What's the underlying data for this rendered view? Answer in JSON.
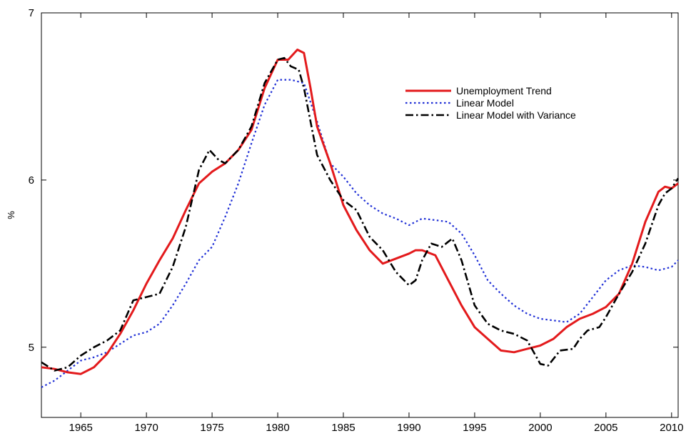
{
  "chart_data": {
    "type": "line",
    "title": "",
    "xlabel": "",
    "ylabel": "%",
    "xlim": [
      1962,
      2010.5
    ],
    "ylim": [
      4.58,
      7.0
    ],
    "xticks": [
      1965,
      1970,
      1975,
      1980,
      1985,
      1990,
      1995,
      2000,
      2005,
      2010
    ],
    "yticks": [
      5,
      6,
      7
    ],
    "grid": false,
    "legend_position": "top-right",
    "series": [
      {
        "name": "Unemployment Trend",
        "color": "#e31a1c",
        "style": "solid",
        "x": [
          1962,
          1963,
          1964,
          1965,
          1966,
          1967,
          1968,
          1969,
          1970,
          1971,
          1972,
          1973,
          1974,
          1975,
          1976,
          1977,
          1978,
          1979,
          1980,
          1980.8,
          1981.5,
          1982,
          1982.5,
          1983,
          1984,
          1985,
          1986,
          1987,
          1988,
          1989,
          1990,
          1990.5,
          1991,
          1992,
          1993,
          1994,
          1995,
          1996,
          1997,
          1998,
          1999,
          2000,
          2001,
          2002,
          2003,
          2004,
          2005,
          2006,
          2007,
          2008,
          2009,
          2009.5,
          2010,
          2010.5
        ],
        "y": [
          4.88,
          4.87,
          4.85,
          4.84,
          4.88,
          4.96,
          5.08,
          5.22,
          5.38,
          5.52,
          5.65,
          5.82,
          5.98,
          6.05,
          6.1,
          6.18,
          6.3,
          6.55,
          6.72,
          6.72,
          6.78,
          6.76,
          6.55,
          6.32,
          6.1,
          5.85,
          5.7,
          5.58,
          5.5,
          5.53,
          5.56,
          5.58,
          5.58,
          5.55,
          5.4,
          5.25,
          5.12,
          5.05,
          4.98,
          4.97,
          4.99,
          5.01,
          5.05,
          5.12,
          5.17,
          5.2,
          5.24,
          5.32,
          5.5,
          5.75,
          5.93,
          5.96,
          5.95,
          5.98
        ]
      },
      {
        "name": "Linear Model",
        "color": "#1f2fd6",
        "style": "dotted",
        "x": [
          1962,
          1963,
          1964,
          1965,
          1966,
          1967,
          1968,
          1969,
          1970,
          1971,
          1972,
          1973,
          1974,
          1975,
          1976,
          1977,
          1978,
          1979,
          1980,
          1981,
          1982,
          1983,
          1984,
          1985,
          1986,
          1987,
          1988,
          1989,
          1990,
          1991,
          1992,
          1993,
          1994,
          1995,
          1996,
          1997,
          1998,
          1999,
          2000,
          2001,
          2002,
          2003,
          2004,
          2005,
          2006,
          2007,
          2008,
          2009,
          2010,
          2010.5
        ],
        "y": [
          4.76,
          4.8,
          4.86,
          4.92,
          4.94,
          4.97,
          5.02,
          5.07,
          5.09,
          5.14,
          5.25,
          5.38,
          5.52,
          5.6,
          5.78,
          5.98,
          6.22,
          6.45,
          6.6,
          6.6,
          6.58,
          6.35,
          6.1,
          6.02,
          5.92,
          5.85,
          5.8,
          5.77,
          5.73,
          5.77,
          5.76,
          5.75,
          5.68,
          5.55,
          5.4,
          5.32,
          5.25,
          5.2,
          5.17,
          5.16,
          5.15,
          5.2,
          5.3,
          5.4,
          5.46,
          5.49,
          5.48,
          5.46,
          5.48,
          5.52
        ]
      },
      {
        "name": "Linear Model with Variance",
        "color": "#000000",
        "style": "dashdot",
        "x": [
          1962,
          1963,
          1964,
          1965,
          1966,
          1967,
          1968,
          1969,
          1970,
          1971,
          1972,
          1973,
          1974,
          1974.8,
          1975.5,
          1976,
          1977,
          1978,
          1979,
          1980,
          1980.5,
          1981,
          1981.6,
          1982,
          1982.5,
          1983,
          1984,
          1985,
          1986,
          1987,
          1988,
          1989,
          1990,
          1990.5,
          1991,
          1991.7,
          1992.5,
          1993.3,
          1994,
          1995,
          1996,
          1997,
          1998,
          1999,
          2000,
          2000.6,
          2001.5,
          2002.5,
          2003,
          2003.6,
          2004.5,
          2005,
          2006,
          2007,
          2008,
          2009,
          2009.5,
          2010,
          2010.5
        ],
        "y": [
          4.91,
          4.86,
          4.88,
          4.95,
          5.0,
          5.04,
          5.1,
          5.28,
          5.3,
          5.32,
          5.48,
          5.72,
          6.06,
          6.18,
          6.12,
          6.1,
          6.18,
          6.32,
          6.58,
          6.72,
          6.73,
          6.68,
          6.66,
          6.55,
          6.35,
          6.15,
          6.0,
          5.88,
          5.82,
          5.66,
          5.58,
          5.45,
          5.37,
          5.4,
          5.52,
          5.62,
          5.6,
          5.65,
          5.52,
          5.25,
          5.14,
          5.1,
          5.08,
          5.04,
          4.9,
          4.89,
          4.98,
          4.99,
          5.05,
          5.1,
          5.12,
          5.18,
          5.32,
          5.45,
          5.62,
          5.85,
          5.92,
          5.95,
          6.01
        ]
      }
    ]
  }
}
